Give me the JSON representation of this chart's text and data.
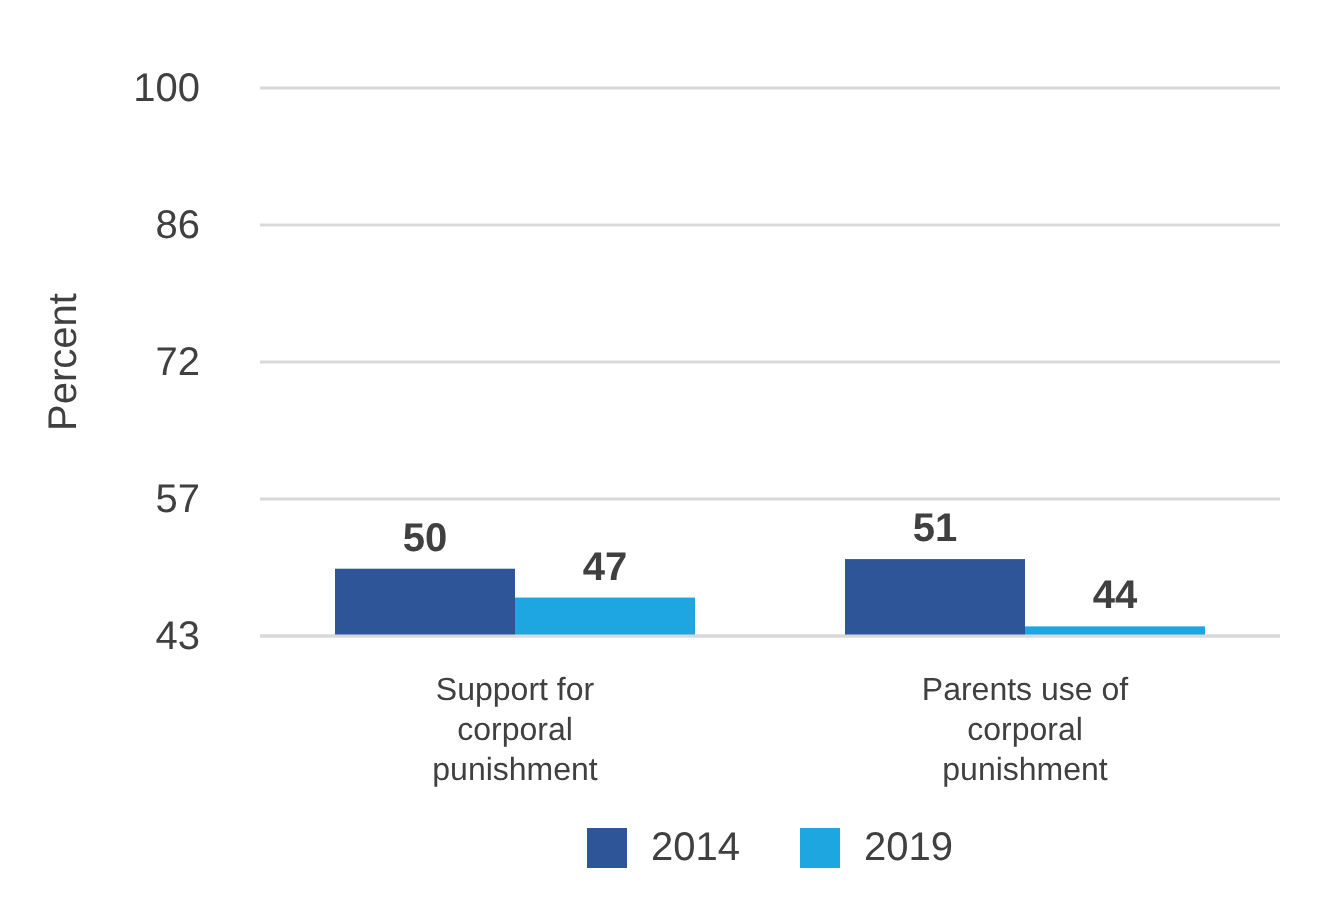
{
  "chart_data": {
    "type": "bar",
    "ylabel": "Percent",
    "categories": [
      "Support for corporal punishment",
      "Parents use of corporal punishment"
    ],
    "series": [
      {
        "name": "2014",
        "color": "#2e5597",
        "values": [
          50,
          51
        ]
      },
      {
        "name": "2019",
        "color": "#1ea6e0",
        "values": [
          47,
          44
        ]
      }
    ],
    "ylim": [
      43,
      100
    ],
    "yticks": [
      43,
      {
        "value": 57.25,
        "label": "57"
      },
      {
        "value": 71.5,
        "label": "72"
      },
      {
        "value": 85.75,
        "label": "86"
      },
      100
    ],
    "grid": "y",
    "legend": "bottom",
    "data_labels": true
  }
}
